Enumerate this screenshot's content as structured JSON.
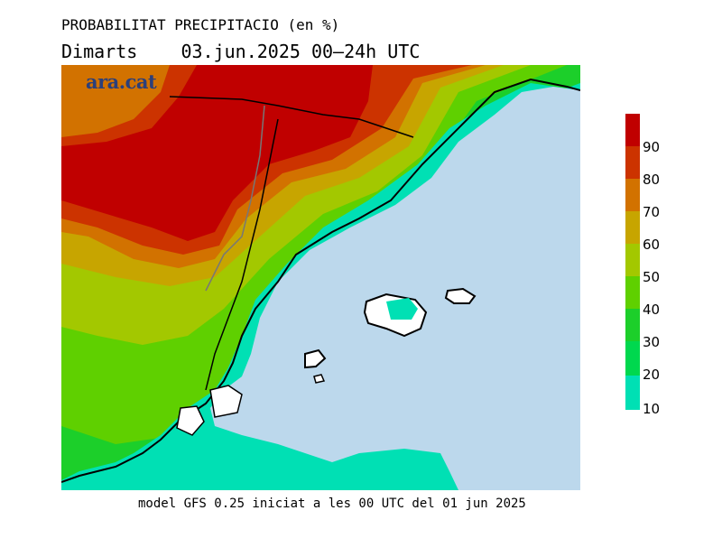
{
  "header": {
    "title": "PROBABILITAT PRECIPITACIO (en %)",
    "subtitle": "Dimarts    03.jun.2025 00–24h UTC"
  },
  "logo": {
    "text": "ara.cat"
  },
  "footer": {
    "text": "model GFS 0.25 iniciat a les 00 UTC del 01 jun 2025"
  },
  "legend": {
    "levels": [
      {
        "label": "90",
        "color": "#c00000"
      },
      {
        "label": "80",
        "color": "#cc3300"
      },
      {
        "label": "70",
        "color": "#d27200"
      },
      {
        "label": "60",
        "color": "#c7a500"
      },
      {
        "label": "50",
        "color": "#a3c800"
      },
      {
        "label": "40",
        "color": "#5fd000"
      },
      {
        "label": "30",
        "color": "#1ccf2a"
      },
      {
        "label": "20",
        "color": "#00d84e"
      },
      {
        "label": "10",
        "color": "#00e0b4"
      }
    ]
  },
  "map": {
    "sea_color": "#bcd8ec",
    "land_nodata_color": "#ffffff"
  }
}
